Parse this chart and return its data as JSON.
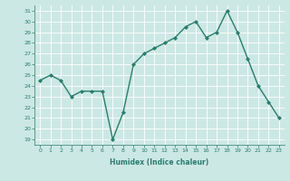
{
  "x": [
    0,
    1,
    2,
    3,
    4,
    5,
    6,
    7,
    8,
    9,
    10,
    11,
    12,
    13,
    14,
    15,
    16,
    17,
    18,
    19,
    20,
    21,
    22,
    23
  ],
  "y": [
    24.5,
    25.0,
    24.5,
    23.0,
    23.5,
    23.5,
    23.5,
    19.0,
    21.5,
    26.0,
    27.0,
    27.5,
    28.0,
    28.5,
    29.5,
    30.0,
    28.5,
    29.0,
    31.0,
    29.0,
    26.5,
    24.0,
    22.5,
    21.0
  ],
  "line_color": "#2a7d6e",
  "marker": "D",
  "markersize": 2.0,
  "linewidth": 1.0,
  "xlabel": "Humidex (Indice chaleur)",
  "ylim": [
    18.5,
    31.5
  ],
  "yticks": [
    19,
    20,
    21,
    22,
    23,
    24,
    25,
    26,
    27,
    28,
    29,
    30,
    31
  ],
  "xticks": [
    0,
    1,
    2,
    3,
    4,
    5,
    6,
    7,
    8,
    9,
    10,
    11,
    12,
    13,
    14,
    15,
    16,
    17,
    18,
    19,
    20,
    21,
    22,
    23
  ],
  "bg_color": "#cce8e4",
  "grid_color": "#ffffff",
  "tick_color": "#2a7d6e",
  "label_color": "#2a7d6e"
}
